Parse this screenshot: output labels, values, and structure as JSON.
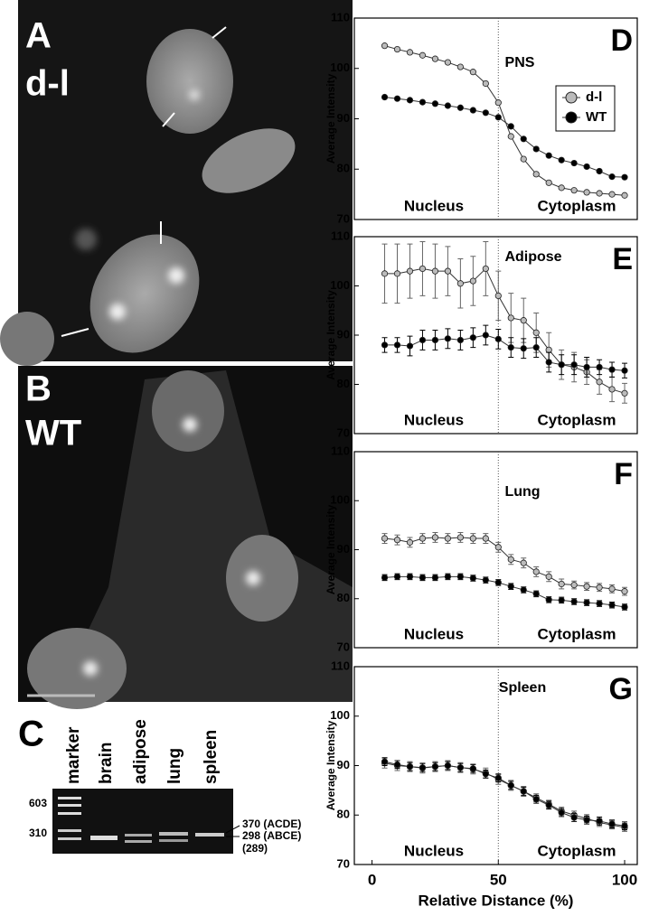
{
  "panels": {
    "a": {
      "letter": "A",
      "label": "d-l"
    },
    "b": {
      "letter": "B",
      "label": "WT"
    },
    "c": {
      "letter": "C",
      "lanes": [
        "marker",
        "brain",
        "adipose",
        "lung",
        "spleen"
      ],
      "marker_sizes": [
        "603",
        "310"
      ],
      "band_labels": [
        "370 (ACDE)",
        "298 (ABCE)",
        "(289)"
      ]
    }
  },
  "chart_data": [
    {
      "type": "line",
      "panel_label": "D",
      "title": "PNS",
      "annotations": [
        "Nucleus",
        "Cytoplasm"
      ],
      "y_label": "Average Intensity",
      "legend": true,
      "reference_line_x": 50,
      "x": [
        5,
        10,
        15,
        20,
        25,
        30,
        35,
        40,
        45,
        50,
        55,
        60,
        65,
        70,
        75,
        80,
        85,
        90,
        95,
        100
      ],
      "xlim": [
        -7,
        105
      ],
      "ylim": [
        70,
        110
      ],
      "yticks": [
        70,
        80,
        90,
        100,
        110
      ],
      "series": [
        {
          "name": "d-l",
          "color": "#bbbbbb",
          "values": [
            104.5,
            103.8,
            103.2,
            102.6,
            101.9,
            101.2,
            100.3,
            99.3,
            97,
            93.2,
            86.5,
            82,
            79,
            77.3,
            76.3,
            75.8,
            75.4,
            75.2,
            75,
            74.8
          ]
        },
        {
          "name": "WT",
          "color": "#000000",
          "values": [
            94.3,
            94,
            93.7,
            93.3,
            93,
            92.6,
            92.2,
            91.7,
            91.2,
            90.3,
            88.5,
            86,
            84,
            82.7,
            81.8,
            81.2,
            80.5,
            79.6,
            78.5,
            78.4
          ]
        }
      ]
    },
    {
      "type": "line",
      "panel_label": "E",
      "title": "Adipose",
      "annotations": [
        "Nucleus",
        "Cytoplasm"
      ],
      "y_label": "Average Intensity",
      "reference_line_x": 50,
      "x": [
        5,
        10,
        15,
        20,
        25,
        30,
        35,
        40,
        45,
        50,
        55,
        60,
        65,
        70,
        75,
        80,
        85,
        90,
        95,
        100
      ],
      "xlim": [
        -7,
        105
      ],
      "ylim": [
        70,
        110
      ],
      "yticks": [
        70,
        80,
        90,
        100,
        110
      ],
      "series": [
        {
          "color": "#bbbbbb",
          "values": [
            102.5,
            102.5,
            103,
            103.5,
            103,
            103,
            100.5,
            101,
            103.5,
            98,
            93.5,
            93,
            90.5,
            87,
            84,
            83.5,
            82.5,
            80.5,
            79,
            78.2
          ],
          "errors": [
            6,
            6,
            5.5,
            5.5,
            5.5,
            5,
            5,
            5,
            5.5,
            5,
            5,
            4.5,
            4,
            3.5,
            3,
            3,
            2.5,
            2.5,
            2.5,
            2
          ]
        },
        {
          "color": "#000000",
          "values": [
            88,
            88,
            87.8,
            89,
            89,
            89.3,
            89,
            89.5,
            90,
            89.2,
            87.5,
            87.3,
            87.5,
            84.5,
            84,
            84,
            83.5,
            83.5,
            83,
            82.8
          ],
          "errors": [
            1.5,
            1.5,
            2,
            2,
            2,
            2,
            2,
            2,
            2,
            2,
            2,
            2,
            2,
            2,
            2,
            2,
            2,
            1.5,
            1.5,
            1.5
          ]
        }
      ]
    },
    {
      "type": "line",
      "panel_label": "F",
      "title": "Lung",
      "annotations": [
        "Nucleus",
        "Cytoplasm"
      ],
      "y_label": "Average Intensity",
      "reference_line_x": 50,
      "x": [
        5,
        10,
        15,
        20,
        25,
        30,
        35,
        40,
        45,
        50,
        55,
        60,
        65,
        70,
        75,
        80,
        85,
        90,
        95,
        100
      ],
      "xlim": [
        -7,
        105
      ],
      "ylim": [
        70,
        110
      ],
      "yticks": [
        70,
        80,
        90,
        100,
        110
      ],
      "series": [
        {
          "color": "#bbbbbb",
          "values": [
            92.3,
            92,
            91.5,
            92.3,
            92.5,
            92.3,
            92.5,
            92.3,
            92.3,
            90.5,
            88,
            87.3,
            85.5,
            84.5,
            83,
            82.8,
            82.5,
            82.3,
            82,
            81.5
          ],
          "errors": [
            1,
            1,
            1,
            1,
            1,
            1,
            1,
            1,
            1,
            1,
            1,
            1,
            1,
            1,
            1,
            0.8,
            0.8,
            0.8,
            0.8,
            0.8
          ]
        },
        {
          "color": "#000000",
          "values": [
            84.3,
            84.5,
            84.5,
            84.3,
            84.3,
            84.5,
            84.5,
            84.2,
            83.8,
            83.3,
            82.5,
            81.8,
            81,
            79.8,
            79.7,
            79.4,
            79.2,
            79,
            78.7,
            78.3
          ],
          "errors": [
            0.6,
            0.6,
            0.6,
            0.6,
            0.6,
            0.6,
            0.6,
            0.6,
            0.6,
            0.6,
            0.6,
            0.6,
            0.6,
            0.6,
            0.6,
            0.6,
            0.6,
            0.6,
            0.6,
            0.6
          ]
        }
      ]
    },
    {
      "type": "line",
      "panel_label": "G",
      "title": "Spleen",
      "annotations": [
        "Nucleus",
        "Cytoplasm"
      ],
      "y_label": "Average Intensity",
      "x_label": "Relative Distance (%)",
      "reference_line_x": 50,
      "x": [
        5,
        10,
        15,
        20,
        25,
        30,
        35,
        40,
        45,
        50,
        55,
        60,
        65,
        70,
        75,
        80,
        85,
        90,
        95,
        100
      ],
      "xlim": [
        -7,
        105
      ],
      "ylim": [
        70,
        110
      ],
      "yticks": [
        70,
        80,
        90,
        100,
        110
      ],
      "xticks": [
        0,
        50,
        100
      ],
      "series": [
        {
          "color": "#bbbbbb",
          "values": [
            90.5,
            90,
            89.8,
            89.5,
            89.8,
            90,
            89.6,
            89.3,
            88.5,
            87.2,
            86,
            84.8,
            83.5,
            82.2,
            80.8,
            80,
            79.3,
            78.5,
            78,
            77.5
          ],
          "errors": [
            1,
            1,
            1,
            1,
            1,
            1,
            1,
            1,
            1,
            1,
            1,
            1,
            0.8,
            0.8,
            0.8,
            0.8,
            0.8,
            0.8,
            0.8,
            0.8
          ]
        },
        {
          "color": "#000000",
          "values": [
            90.8,
            90.2,
            89.8,
            89.6,
            89.8,
            90,
            89.6,
            89.4,
            88.3,
            87.5,
            86,
            84.8,
            83.2,
            82,
            80.5,
            79.5,
            79,
            78.8,
            78.2,
            77.8
          ],
          "errors": [
            0.8,
            0.8,
            0.8,
            0.8,
            0.8,
            0.8,
            0.8,
            0.8,
            0.8,
            0.8,
            0.8,
            0.8,
            0.8,
            0.8,
            0.8,
            0.8,
            0.8,
            0.8,
            0.8,
            0.8
          ]
        }
      ]
    }
  ]
}
